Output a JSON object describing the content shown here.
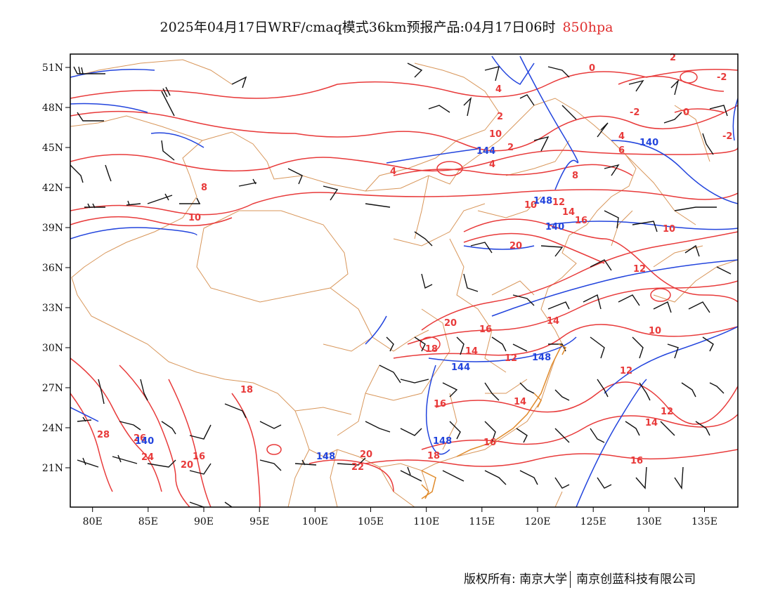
{
  "title": {
    "main": "2025年04月17日WRF/cmaq模式36km预报产品:04月17日06时",
    "level": "850hpa"
  },
  "colors": {
    "temperature": "#e83a3a",
    "height": "#2244dd",
    "border": "#d8965a",
    "wind": "#111111",
    "frame": "#000000"
  },
  "map": {
    "lon_range": [
      78,
      138
    ],
    "lat_range": [
      18,
      52
    ],
    "x_ticks": [
      "80E",
      "85E",
      "90E",
      "95E",
      "100E",
      "105E",
      "110E",
      "115E",
      "120E",
      "125E",
      "130E",
      "135E"
    ],
    "y_ticks": [
      "51N",
      "48N",
      "45N",
      "42N",
      "39N",
      "36N",
      "33N",
      "30N",
      "27N",
      "24N",
      "21N"
    ]
  },
  "temperature_labels": [
    "0",
    "-2",
    "-2",
    "0",
    "-2",
    "4",
    "2",
    "2",
    "4",
    "2",
    "4",
    "8",
    "8",
    "10",
    "12",
    "14",
    "16",
    "10",
    "10",
    "20",
    "12",
    "16",
    "14",
    "20",
    "18",
    "14",
    "12",
    "10",
    "12",
    "12",
    "14",
    "16",
    "16",
    "14",
    "18",
    "28",
    "26",
    "24",
    "20",
    "16",
    "22",
    "20",
    "18",
    "16",
    "4",
    "10",
    "6"
  ],
  "height_labels": [
    "144",
    "140",
    "140",
    "148",
    "144",
    "140",
    "148",
    "148",
    "148"
  ],
  "footer": {
    "left": "版权所有: 南京大学",
    "right": "南京创蓝科技有限公司"
  }
}
